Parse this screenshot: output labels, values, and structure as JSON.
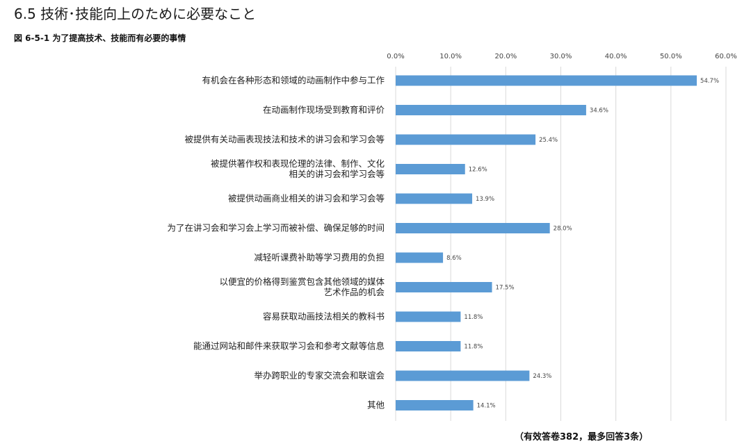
{
  "page": {
    "section_title": "6.5  技術･技能向上のために必要なこと",
    "figure_caption": "図 6-5-1   为了提高技术、技能而有必要的事情",
    "footnote": "（有效答卷382，最多回答3条）"
  },
  "chart_data": {
    "type": "bar",
    "orientation": "horizontal",
    "title": "为了提高技术、技能而有必要的事情",
    "xlim": [
      0,
      60
    ],
    "x_ticks": [
      "0.0%",
      "10.0%",
      "20.0%",
      "30.0%",
      "40.0%",
      "50.0%",
      "60.0%"
    ],
    "x_tick_values": [
      0,
      10,
      20,
      30,
      40,
      50,
      60
    ],
    "x_axis_position": "top",
    "grid": true,
    "bar_color": "#5b9bd5",
    "grid_color": "#d9d9d9",
    "categories": [
      [
        "有机会在各种形态和领域的动画制作中参与工作"
      ],
      [
        "在动画制作现场受到教育和评价"
      ],
      [
        "被提供有关动画表现技法和技术的讲习会和学习会等"
      ],
      [
        "被提供著作权和表现伦理的法律、制作、文化",
        "相关的讲习会和学习会等"
      ],
      [
        "被提供动画商业相关的讲习会和学习会等"
      ],
      [
        "为了在讲习会和学习会上学习而被补偿、确保足够的时间"
      ],
      [
        "减轻听课费补助等学习费用的负担"
      ],
      [
        "以便宜的价格得到鉴赏包含其他领域的媒体",
        "艺术作品的机会"
      ],
      [
        "容易获取动画技法相关的教科书"
      ],
      [
        "能通过网站和邮件来获取学习会和参考文献等信息"
      ],
      [
        "举办跨职业的专家交流会和联谊会"
      ],
      [
        "其他"
      ]
    ],
    "values": [
      54.7,
      34.6,
      25.4,
      12.6,
      13.9,
      28.0,
      8.6,
      17.5,
      11.8,
      11.8,
      24.3,
      14.1
    ],
    "value_labels": [
      "54.7%",
      "34.6%",
      "25.4%",
      "12.6%",
      "13.9%",
      "28.0%",
      "8.6%",
      "17.5%",
      "11.8%",
      "11.8%",
      "24.3%",
      "14.1%"
    ]
  }
}
